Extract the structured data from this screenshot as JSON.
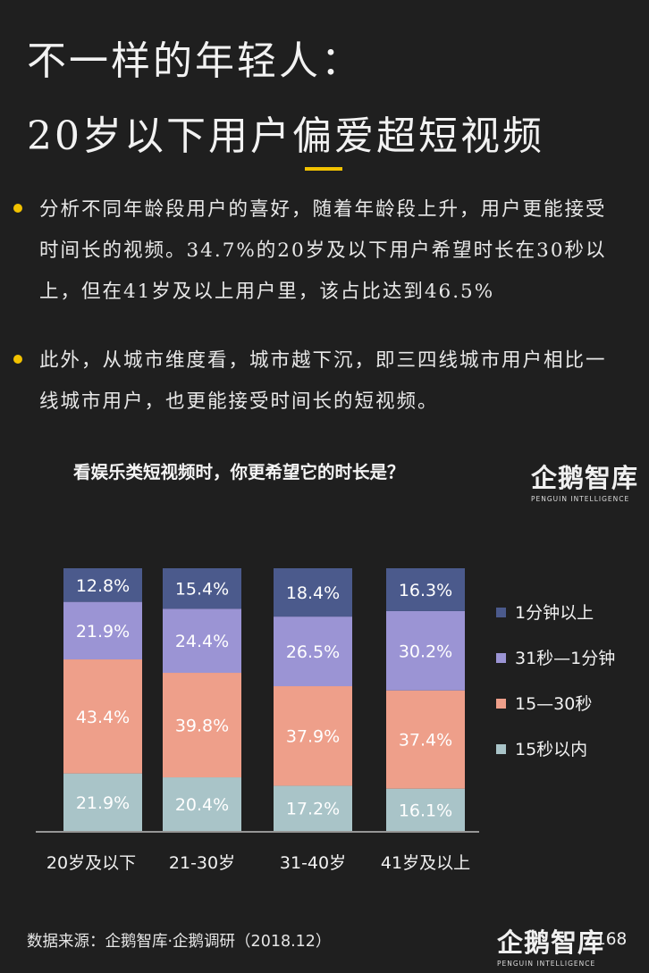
{
  "header": {
    "title_line1": "不一样的年轻人：",
    "title_line2": "20岁以下用户偏爱超短视频",
    "accent_color": "#f2c200"
  },
  "bullets": [
    {
      "text": "分析不同年龄段用户的喜好，随着年龄段上升，用户更能接受时间长的视频。34.7%的20岁及以下用户希望时长在30秒以上，但在41岁及以上用户里，该占比达到46.5%"
    },
    {
      "text": "此外，从城市维度看，城市越下沉，即三四线城市用户相比一线城市用户，也更能接受时间长的短视频。"
    }
  ],
  "brand": {
    "name": "企鹅智库",
    "sub": "PENGUIN INTELLIGENCE"
  },
  "footer": {
    "source": "数据来源：企鹅智库·企鹅调研（2018.12）",
    "page": "168"
  },
  "chart_data": {
    "type": "bar",
    "stacked": true,
    "title": "看娱乐类短视频时，你更希望它的时长是？",
    "categories": [
      "20岁及以下",
      "21-30岁",
      "31-40岁",
      "41岁及以上"
    ],
    "series": [
      {
        "name": "15秒以内",
        "values": [
          21.9,
          20.4,
          17.2,
          16.1
        ],
        "labels": [
          "21.9%",
          "20.4%",
          "17.2%",
          "16.1%"
        ],
        "color": "#a9c4c8"
      },
      {
        "name": "15—30秒",
        "values": [
          43.4,
          39.8,
          37.9,
          37.4
        ],
        "labels": [
          "43.4%",
          "39.8%",
          "37.9%",
          "37.4%"
        ],
        "color": "#ee9f8a"
      },
      {
        "name": "31秒—1分钟",
        "values": [
          21.9,
          24.4,
          26.5,
          30.2
        ],
        "labels": [
          "21.9%",
          "24.4%",
          "26.5%",
          "30.2%"
        ],
        "color": "#9b94d4"
      },
      {
        "name": "1分钟以上",
        "values": [
          12.8,
          15.4,
          18.4,
          16.3
        ],
        "labels": [
          "12.8%",
          "15.4%",
          "18.4%",
          "16.3%"
        ],
        "color": "#4b5a8c"
      }
    ],
    "legend_order": [
      "1分钟以上",
      "31秒—1分钟",
      "15—30秒",
      "15秒以内"
    ],
    "legend_position": "right",
    "ylim": [
      0,
      100
    ],
    "grid": false
  }
}
